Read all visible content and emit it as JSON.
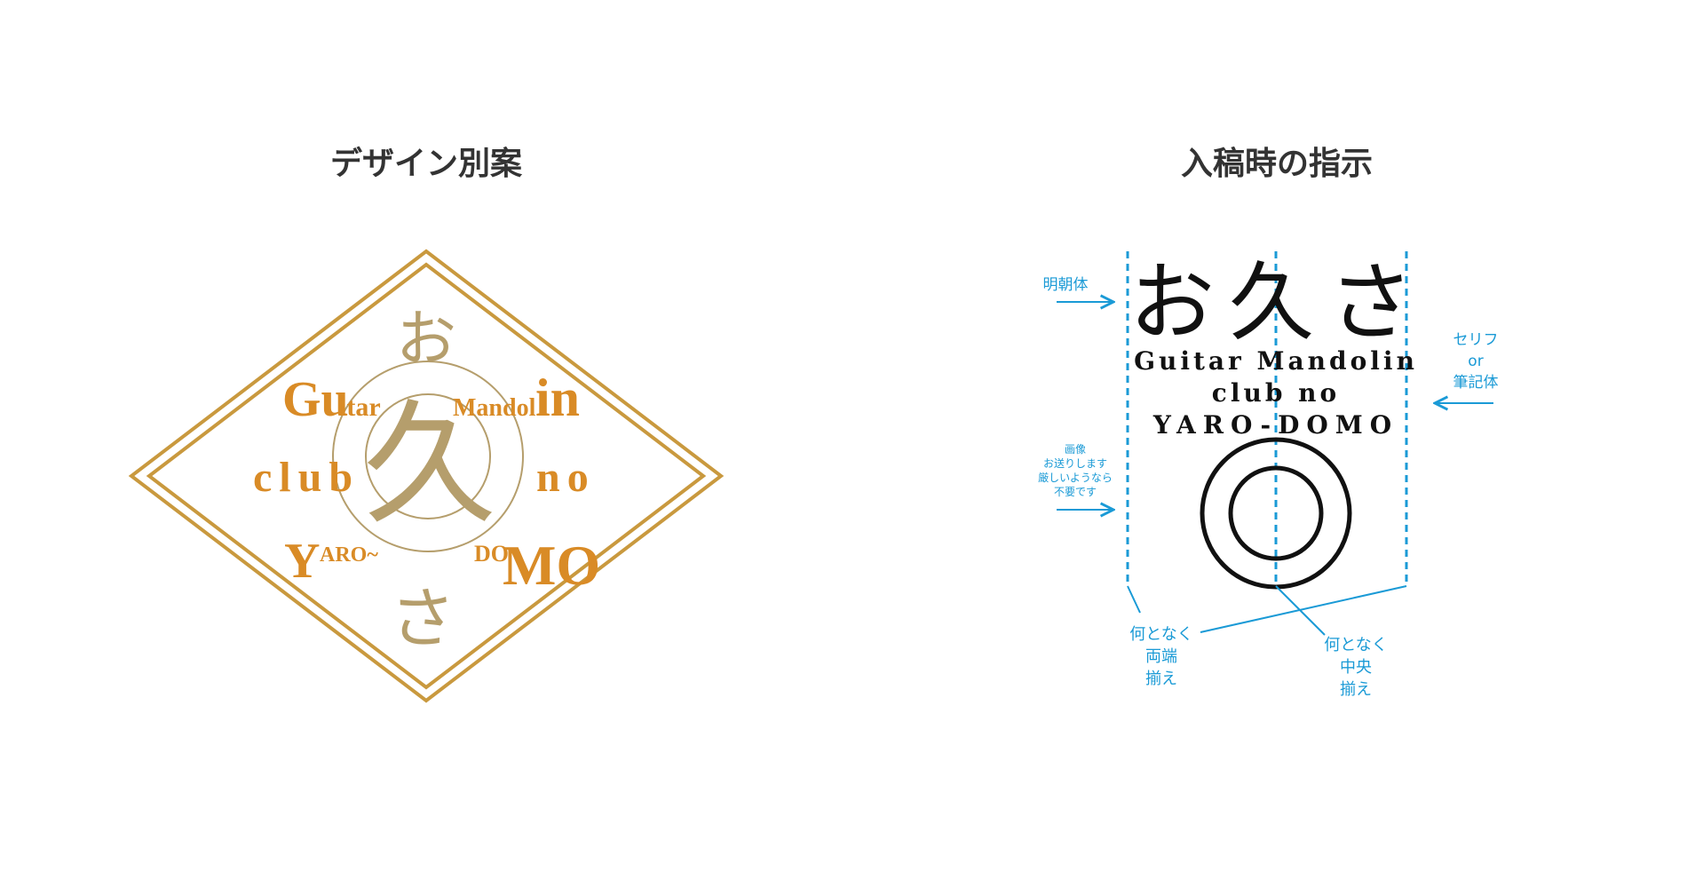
{
  "colors": {
    "gold_frame": "#c9993e",
    "gold_text": "#d98b26",
    "khaki": "#b59e6c",
    "blue_annotation": "#1a9ad6",
    "black": "#111111"
  },
  "left_panel": {
    "heading": "デザイン別案",
    "logo": {
      "hiragana_top": "お",
      "kanji_center": "久",
      "hiragana_bottom": "さ",
      "line1_left_big": "Gu",
      "line1_left_small": "itar",
      "line1_right_small": "Mandol",
      "line1_right_big": "in",
      "line2_left": "club",
      "line2_right": "no",
      "line3_left_big": "Y",
      "line3_left_small": "ARO~",
      "line3_right_small": "DO",
      "line3_right_big": "MO"
    }
  },
  "right_panel": {
    "heading": "入稿時の指示",
    "logo": {
      "chars": [
        "お",
        "久",
        "さ"
      ],
      "line1": "Guitar Mandolin",
      "line2": "club no",
      "line3": "YARO-DOMO"
    },
    "annotations": {
      "font_mincho": "明朝体",
      "font_serif_line1": "セリフ",
      "font_serif_line2": "or",
      "font_serif_line3": "筆記体",
      "image_note_lines": [
        "画像",
        "お送りします",
        "厳しいようなら",
        "不要です"
      ],
      "justify_both_lines": [
        "何となく",
        "両端",
        "揃え"
      ],
      "center_lines": [
        "何となく",
        "中央",
        "揃え"
      ]
    }
  }
}
